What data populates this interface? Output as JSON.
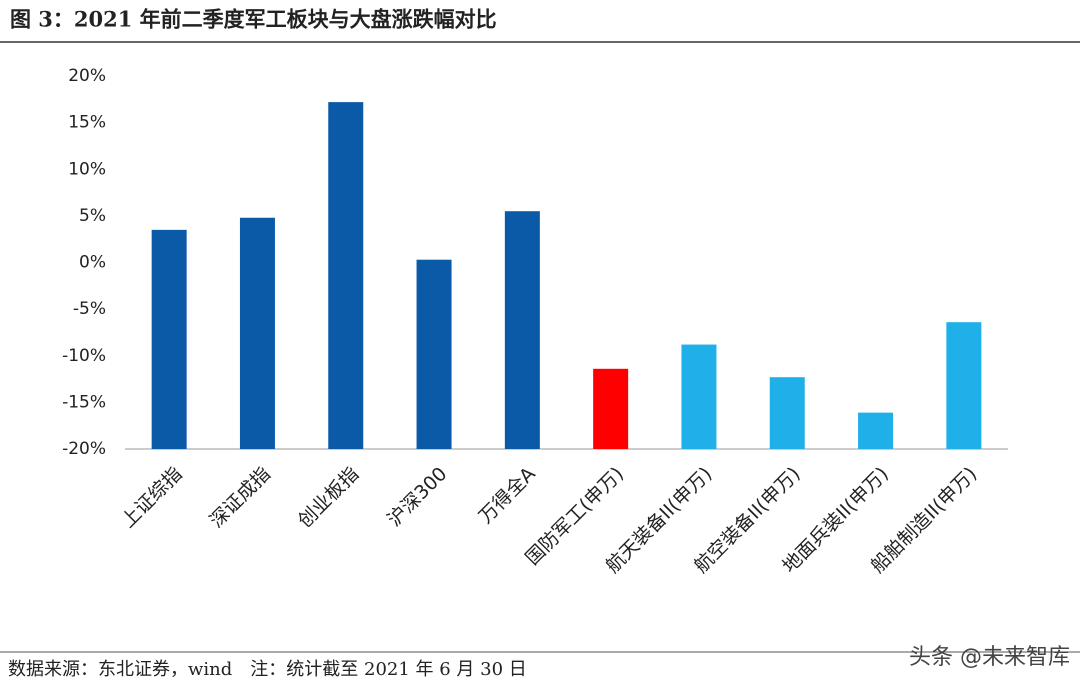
{
  "chart_data": {
    "type": "bar",
    "title": "图 3：2021 年前二季度军工板块与大盘涨跌幅对比",
    "categories": [
      "上证综指",
      "深证成指",
      "创业板指",
      "沪深300",
      "万得全A",
      "国防军工(申万)",
      "航天装备II(申万)",
      "航空装备II(申万)",
      "地面兵装II(申万)",
      "船舶制造II(申万)"
    ],
    "values": [
      3.5,
      4.8,
      17.2,
      0.3,
      5.5,
      -11.4,
      -8.8,
      -12.3,
      -16.1,
      -6.4
    ],
    "colors": [
      "#0b5aa8",
      "#0b5aa8",
      "#0b5aa8",
      "#0b5aa8",
      "#0b5aa8",
      "#ff0000",
      "#1fb0ea",
      "#1fb0ea",
      "#1fb0ea",
      "#1fb0ea"
    ],
    "ylim": [
      -20,
      20
    ],
    "yticks": [
      {
        "value": -20,
        "label": "-20%"
      },
      {
        "value": -15,
        "label": "-15%"
      },
      {
        "value": -10,
        "label": "-10%"
      },
      {
        "value": -5,
        "label": "-5%"
      },
      {
        "value": 0,
        "label": "0%"
      },
      {
        "value": 5,
        "label": "5%"
      },
      {
        "value": 10,
        "label": "10%"
      },
      {
        "value": 15,
        "label": "15%"
      },
      {
        "value": 20,
        "label": "20%"
      }
    ],
    "grid": false,
    "source": "数据来源：东北证券，wind　注：统计截至 2021 年 6 月 30 日",
    "watermark": "头条 @未来智库"
  }
}
